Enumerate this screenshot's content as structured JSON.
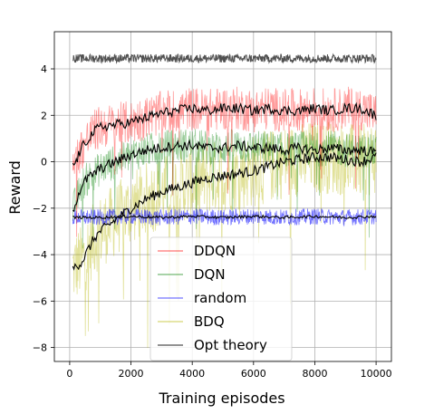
{
  "chart_data": {
    "type": "line",
    "title": "",
    "xlabel": "Training episodes",
    "ylabel": "Reward",
    "xlim": [
      -500,
      10500
    ],
    "ylim": [
      -8.6,
      5.6
    ],
    "grid": true,
    "legend_placement": "lower-center",
    "x_ticks": [
      0,
      2000,
      4000,
      6000,
      8000,
      10000
    ],
    "x_tick_labels": [
      "0",
      "2000",
      "4000",
      "6000",
      "8000",
      "10000"
    ],
    "y_ticks": [
      -8,
      -6,
      -4,
      -2,
      0,
      2,
      4
    ],
    "y_tick_labels": [
      "−8",
      "−6",
      "−4",
      "−2",
      "0",
      "2",
      "4"
    ],
    "series": [
      {
        "name": "DDQN",
        "color": "#ff0000",
        "raw_spread": 0.95,
        "smoothed_color": "#000000",
        "x": [
          0,
          100,
          200,
          400,
          600,
          800,
          1000,
          1500,
          2000,
          2500,
          3000,
          3500,
          4000,
          4500,
          5000,
          5500,
          6000,
          6500,
          7000,
          7500,
          8000,
          8500,
          9000,
          9500,
          10000
        ],
        "values": [
          -0.3,
          -0.2,
          0.0,
          0.6,
          1.0,
          1.3,
          1.5,
          1.6,
          1.7,
          1.9,
          2.1,
          2.2,
          2.3,
          2.2,
          2.3,
          2.3,
          2.2,
          2.3,
          2.2,
          2.2,
          2.3,
          2.2,
          2.3,
          2.3,
          2.0
        ]
      },
      {
        "name": "DQN",
        "color": "#008000",
        "raw_spread": 0.75,
        "smoothed_color": "#000000",
        "x": [
          0,
          100,
          200,
          400,
          600,
          800,
          1000,
          1500,
          2000,
          2500,
          3000,
          3500,
          4000,
          4500,
          5000,
          5500,
          6000,
          6500,
          7000,
          7500,
          8000,
          8500,
          9000,
          9500,
          10000
        ],
        "values": [
          -2.3,
          -2.1,
          -1.7,
          -1.0,
          -0.7,
          -0.5,
          -0.3,
          0.0,
          0.3,
          0.5,
          0.6,
          0.7,
          0.7,
          0.6,
          0.6,
          0.7,
          0.6,
          0.6,
          0.5,
          0.6,
          0.5,
          0.6,
          0.5,
          0.5,
          0.4
        ]
      },
      {
        "name": "random",
        "color": "#0000ff",
        "raw_spread": 0.35,
        "smoothed_color": "#000000",
        "x": [
          0,
          1000,
          2000,
          3000,
          4000,
          5000,
          6000,
          7000,
          8000,
          9000,
          10000
        ],
        "values": [
          -2.4,
          -2.4,
          -2.35,
          -2.4,
          -2.35,
          -2.4,
          -2.35,
          -2.4,
          -2.35,
          -2.4,
          -2.35
        ]
      },
      {
        "name": "BDQ",
        "color": "#b5b500",
        "raw_spread": 1.6,
        "smoothed_color": "#000000",
        "x": [
          0,
          100,
          200,
          400,
          600,
          800,
          1000,
          1500,
          2000,
          2500,
          3000,
          3500,
          4000,
          4500,
          5000,
          5500,
          6000,
          6500,
          7000,
          7500,
          8000,
          8500,
          9000,
          9500,
          10000
        ],
        "values": [
          -4.6,
          -4.6,
          -4.5,
          -4.3,
          -3.8,
          -3.3,
          -3.0,
          -2.5,
          -2.0,
          -1.6,
          -1.3,
          -1.1,
          -0.9,
          -0.7,
          -0.6,
          -0.5,
          -0.4,
          -0.2,
          0.0,
          0.1,
          0.2,
          0.2,
          0.1,
          0.0,
          0.2
        ]
      },
      {
        "name": "Opt theory",
        "color": "#333333",
        "raw_spread": 0.18,
        "smoothed_color": null,
        "x": [
          0,
          1000,
          2000,
          3000,
          4000,
          5000,
          6000,
          7000,
          8000,
          9000,
          10000
        ],
        "values": [
          4.45,
          4.45,
          4.45,
          4.45,
          4.45,
          4.45,
          4.45,
          4.45,
          4.45,
          4.45,
          4.45
        ]
      }
    ]
  }
}
